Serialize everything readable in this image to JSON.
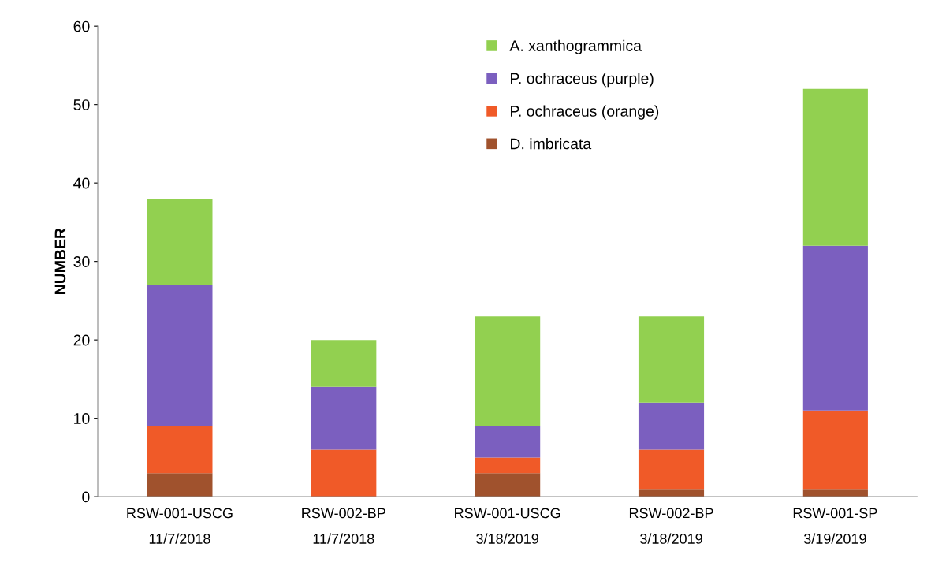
{
  "chart_data": {
    "type": "bar",
    "stacked": true,
    "ylabel": "NUMBER",
    "categories": [
      "RSW-001-USCG\n11/7/2018",
      "RSW-002-BP\n11/7/2018",
      "RSW-001-USCG\n3/18/2019",
      "RSW-002-BP\n3/18/2019",
      "RSW-001-SP\n3/19/2019"
    ],
    "series": [
      {
        "name": "D. imbricata",
        "color": "#a0522d",
        "values": [
          3,
          0,
          3,
          1,
          1
        ]
      },
      {
        "name": "P. ochraceus (orange)",
        "color": "#f05a28",
        "values": [
          6,
          6,
          2,
          5,
          10
        ]
      },
      {
        "name": "P. ochraceus (purple)",
        "color": "#7b5fbf",
        "values": [
          18,
          8,
          4,
          6,
          21
        ]
      },
      {
        "name": "A. xanthogrammica",
        "color": "#92d050",
        "values": [
          11,
          6,
          14,
          11,
          20
        ]
      }
    ],
    "ylim": [
      0,
      60
    ],
    "yticks": [
      0,
      10,
      20,
      30,
      40,
      50,
      60
    ],
    "grid": false,
    "legend": "top"
  }
}
